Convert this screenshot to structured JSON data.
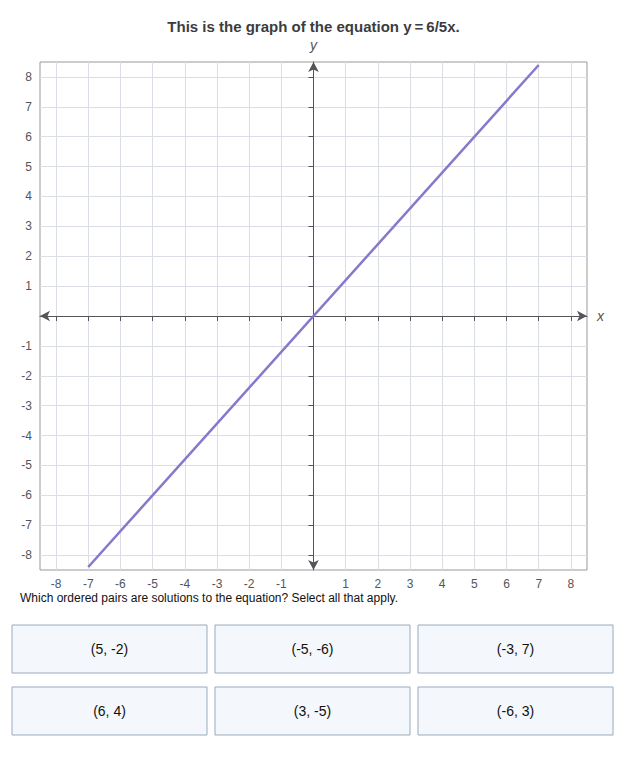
{
  "chart_data": {
    "type": "line",
    "title": "This is the graph of the equation y = 6/5x.",
    "x": [
      -7.0,
      7.0
    ],
    "values": [
      -8.4,
      8.4
    ],
    "color": "#8878CC",
    "xlim": [
      -8.5,
      8.5
    ],
    "ylim": [
      -8.5,
      8.5
    ],
    "xticks": [
      -8,
      -7,
      -6,
      -5,
      -4,
      -3,
      -2,
      -1,
      1,
      2,
      3,
      4,
      5,
      6,
      7,
      8
    ],
    "yticks": [
      -8,
      -7,
      -6,
      -5,
      -4,
      -3,
      -2,
      -1,
      1,
      2,
      3,
      4,
      5,
      6,
      7,
      8
    ],
    "xlabel": "x",
    "ylabel": "y",
    "grid": true,
    "annotations": [
      "Which ordered pairs are solutions to the equation? Select all that apply.",
      "(5, -2)",
      "(-5, -6)",
      "(-3, 7)",
      "(6, 4)",
      "(3, -5)",
      "(-6, 3)"
    ]
  }
}
